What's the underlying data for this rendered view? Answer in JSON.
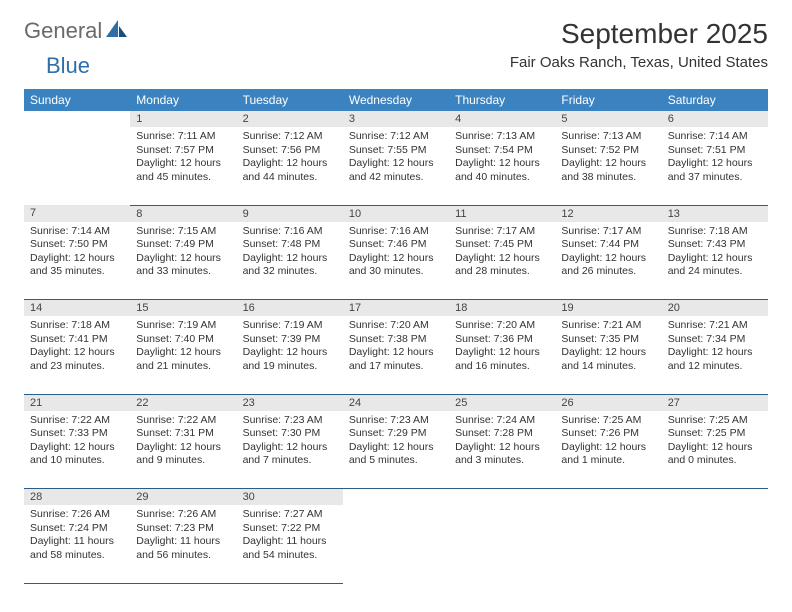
{
  "logo": {
    "general": "General",
    "blue": "Blue"
  },
  "title": "September 2025",
  "location": "Fair Oaks Ranch, Texas, United States",
  "dayHeaders": [
    "Sunday",
    "Monday",
    "Tuesday",
    "Wednesday",
    "Thursday",
    "Friday",
    "Saturday"
  ],
  "colors": {
    "headerBg": "#3b83c0",
    "headerText": "#ffffff",
    "dayNumBg": "#e8e8e8",
    "rowBorder": "#2a5d89",
    "logoGray": "#6a6a6a",
    "logoBlue": "#2f6fa8"
  },
  "weeks": [
    [
      null,
      {
        "n": "1",
        "sr": "Sunrise: 7:11 AM",
        "ss": "Sunset: 7:57 PM",
        "dl": "Daylight: 12 hours and 45 minutes."
      },
      {
        "n": "2",
        "sr": "Sunrise: 7:12 AM",
        "ss": "Sunset: 7:56 PM",
        "dl": "Daylight: 12 hours and 44 minutes."
      },
      {
        "n": "3",
        "sr": "Sunrise: 7:12 AM",
        "ss": "Sunset: 7:55 PM",
        "dl": "Daylight: 12 hours and 42 minutes."
      },
      {
        "n": "4",
        "sr": "Sunrise: 7:13 AM",
        "ss": "Sunset: 7:54 PM",
        "dl": "Daylight: 12 hours and 40 minutes."
      },
      {
        "n": "5",
        "sr": "Sunrise: 7:13 AM",
        "ss": "Sunset: 7:52 PM",
        "dl": "Daylight: 12 hours and 38 minutes."
      },
      {
        "n": "6",
        "sr": "Sunrise: 7:14 AM",
        "ss": "Sunset: 7:51 PM",
        "dl": "Daylight: 12 hours and 37 minutes."
      }
    ],
    [
      {
        "n": "7",
        "sr": "Sunrise: 7:14 AM",
        "ss": "Sunset: 7:50 PM",
        "dl": "Daylight: 12 hours and 35 minutes."
      },
      {
        "n": "8",
        "sr": "Sunrise: 7:15 AM",
        "ss": "Sunset: 7:49 PM",
        "dl": "Daylight: 12 hours and 33 minutes."
      },
      {
        "n": "9",
        "sr": "Sunrise: 7:16 AM",
        "ss": "Sunset: 7:48 PM",
        "dl": "Daylight: 12 hours and 32 minutes."
      },
      {
        "n": "10",
        "sr": "Sunrise: 7:16 AM",
        "ss": "Sunset: 7:46 PM",
        "dl": "Daylight: 12 hours and 30 minutes."
      },
      {
        "n": "11",
        "sr": "Sunrise: 7:17 AM",
        "ss": "Sunset: 7:45 PM",
        "dl": "Daylight: 12 hours and 28 minutes."
      },
      {
        "n": "12",
        "sr": "Sunrise: 7:17 AM",
        "ss": "Sunset: 7:44 PM",
        "dl": "Daylight: 12 hours and 26 minutes."
      },
      {
        "n": "13",
        "sr": "Sunrise: 7:18 AM",
        "ss": "Sunset: 7:43 PM",
        "dl": "Daylight: 12 hours and 24 minutes."
      }
    ],
    [
      {
        "n": "14",
        "sr": "Sunrise: 7:18 AM",
        "ss": "Sunset: 7:41 PM",
        "dl": "Daylight: 12 hours and 23 minutes."
      },
      {
        "n": "15",
        "sr": "Sunrise: 7:19 AM",
        "ss": "Sunset: 7:40 PM",
        "dl": "Daylight: 12 hours and 21 minutes."
      },
      {
        "n": "16",
        "sr": "Sunrise: 7:19 AM",
        "ss": "Sunset: 7:39 PM",
        "dl": "Daylight: 12 hours and 19 minutes."
      },
      {
        "n": "17",
        "sr": "Sunrise: 7:20 AM",
        "ss": "Sunset: 7:38 PM",
        "dl": "Daylight: 12 hours and 17 minutes."
      },
      {
        "n": "18",
        "sr": "Sunrise: 7:20 AM",
        "ss": "Sunset: 7:36 PM",
        "dl": "Daylight: 12 hours and 16 minutes."
      },
      {
        "n": "19",
        "sr": "Sunrise: 7:21 AM",
        "ss": "Sunset: 7:35 PM",
        "dl": "Daylight: 12 hours and 14 minutes."
      },
      {
        "n": "20",
        "sr": "Sunrise: 7:21 AM",
        "ss": "Sunset: 7:34 PM",
        "dl": "Daylight: 12 hours and 12 minutes."
      }
    ],
    [
      {
        "n": "21",
        "sr": "Sunrise: 7:22 AM",
        "ss": "Sunset: 7:33 PM",
        "dl": "Daylight: 12 hours and 10 minutes."
      },
      {
        "n": "22",
        "sr": "Sunrise: 7:22 AM",
        "ss": "Sunset: 7:31 PM",
        "dl": "Daylight: 12 hours and 9 minutes."
      },
      {
        "n": "23",
        "sr": "Sunrise: 7:23 AM",
        "ss": "Sunset: 7:30 PM",
        "dl": "Daylight: 12 hours and 7 minutes."
      },
      {
        "n": "24",
        "sr": "Sunrise: 7:23 AM",
        "ss": "Sunset: 7:29 PM",
        "dl": "Daylight: 12 hours and 5 minutes."
      },
      {
        "n": "25",
        "sr": "Sunrise: 7:24 AM",
        "ss": "Sunset: 7:28 PM",
        "dl": "Daylight: 12 hours and 3 minutes."
      },
      {
        "n": "26",
        "sr": "Sunrise: 7:25 AM",
        "ss": "Sunset: 7:26 PM",
        "dl": "Daylight: 12 hours and 1 minute."
      },
      {
        "n": "27",
        "sr": "Sunrise: 7:25 AM",
        "ss": "Sunset: 7:25 PM",
        "dl": "Daylight: 12 hours and 0 minutes."
      }
    ],
    [
      {
        "n": "28",
        "sr": "Sunrise: 7:26 AM",
        "ss": "Sunset: 7:24 PM",
        "dl": "Daylight: 11 hours and 58 minutes."
      },
      {
        "n": "29",
        "sr": "Sunrise: 7:26 AM",
        "ss": "Sunset: 7:23 PM",
        "dl": "Daylight: 11 hours and 56 minutes."
      },
      {
        "n": "30",
        "sr": "Sunrise: 7:27 AM",
        "ss": "Sunset: 7:22 PM",
        "dl": "Daylight: 11 hours and 54 minutes."
      },
      null,
      null,
      null,
      null
    ]
  ]
}
